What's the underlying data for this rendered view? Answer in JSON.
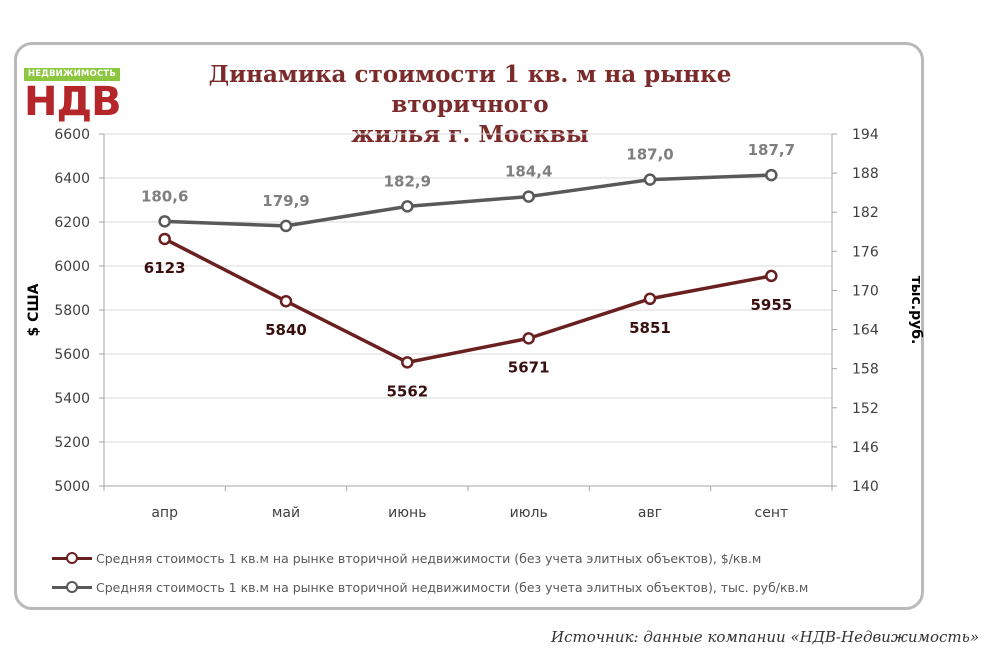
{
  "logo": {
    "band_text": "НЕДВИЖИМОСТЬ",
    "mark_text": "НДВ"
  },
  "title_line1": "Динамика стоимости 1 кв. м на  рынке вторичного",
  "title_line2": "жилья г. Москвы",
  "source": "Источник: данные компании «НДВ-Недвижимость»",
  "colors": {
    "series_usd": "#6b2020",
    "series_rub": "#595959",
    "grid": "#d9d9d9",
    "axis_text": "#404040"
  },
  "chart_data": {
    "type": "line",
    "categories": [
      "апр",
      "май",
      "июнь",
      "июль",
      "авг",
      "сент"
    ],
    "series": [
      {
        "name": "Средняя стоимость 1 кв.м  на рынке вторичной недвижимости (без учета элитных объектов), $/кв.м",
        "axis": "left",
        "values": [
          6123,
          5840,
          5562,
          5671,
          5851,
          5955
        ],
        "labels": [
          "6123",
          "5840",
          "5562",
          "5671",
          "5851",
          "5955"
        ]
      },
      {
        "name": "Средняя стоимость 1 кв.м  на рынке вторичной недвижимости (без учета элитных объектов), тыс. руб/кв.м",
        "axis": "right",
        "values": [
          180.6,
          179.9,
          182.9,
          184.4,
          187.0,
          187.7
        ],
        "labels": [
          "180,6",
          "179,9",
          "182,9",
          "184,4",
          "187,0",
          "187,7"
        ]
      }
    ],
    "ylabel": "$ США",
    "y2label": "тыс.руб.",
    "ylim": [
      5000,
      6600
    ],
    "y2lim": [
      140,
      194
    ],
    "yticks": [
      "5000",
      "5200",
      "5400",
      "5600",
      "5800",
      "6000",
      "6200",
      "6400",
      "6600"
    ],
    "y2ticks": [
      "140",
      "146",
      "152",
      "158",
      "164",
      "170",
      "176",
      "182",
      "188",
      "194"
    ],
    "grid": true,
    "legend_position": "bottom"
  }
}
